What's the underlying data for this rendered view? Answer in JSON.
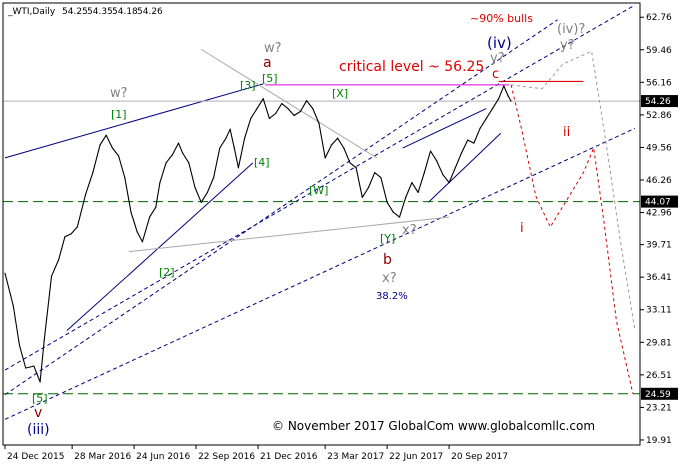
{
  "chart_data": {
    "type": "line",
    "header": {
      "symbol": "_WTI,Daily",
      "ohlc": [
        "54.25",
        "54.35",
        "54.18",
        "54.26"
      ]
    },
    "y_ticks": [
      62.76,
      59.46,
      56.16,
      52.86,
      49.56,
      46.26,
      42.96,
      39.71,
      36.41,
      33.11,
      29.81,
      26.51,
      23.21,
      19.91
    ],
    "y_tick_labels": [
      "62.76",
      "59.46",
      "56.16",
      "52.86",
      "49.56",
      "46.26",
      "42.96",
      "39.71",
      "36.41",
      "33.11",
      "29.81",
      "26.51",
      "23.21",
      "19.91"
    ],
    "ylim": [
      19.4,
      64.2
    ],
    "x_tick_labels": [
      "24 Dec 2015",
      "28 Mar 2016",
      "24 Jun 2016",
      "22 Sep 2016",
      "21 Dec 2016",
      "23 Mar 2017",
      "22 Jun 2017",
      "20 Sep 2017"
    ],
    "x_tick_index": [
      0,
      65,
      125,
      185,
      245,
      310,
      370,
      430
    ],
    "x_total_bars": 610,
    "price_markers": [
      {
        "value": 54.26,
        "label": "54.26",
        "bg": "#000000",
        "fg": "#ffffff"
      },
      {
        "value": 44.07,
        "label": "44.07",
        "bg": "#000000",
        "fg": "#ffffff"
      },
      {
        "value": 24.59,
        "label": "24.59",
        "bg": "#000000",
        "fg": "#ffffff"
      }
    ],
    "horizontal_levels": [
      {
        "value": 44.07,
        "style": "green-dash"
      },
      {
        "value": 24.59,
        "style": "green-dash"
      },
      {
        "value": 54.26,
        "style": "gray-solid"
      }
    ],
    "critical_level": {
      "value": 56.25,
      "label": "critical level ~ 56.25"
    },
    "price_series": {
      "name": "",
      "points": [
        [
          0,
          36.8
        ],
        [
          8,
          33.5
        ],
        [
          14,
          29.5
        ],
        [
          20,
          27.2
        ],
        [
          28,
          27.4
        ],
        [
          34,
          25.8
        ],
        [
          38,
          30.0
        ],
        [
          45,
          36.5
        ],
        [
          52,
          38.2
        ],
        [
          58,
          40.5
        ],
        [
          64,
          40.8
        ],
        [
          70,
          41.5
        ],
        [
          78,
          44.8
        ],
        [
          85,
          47.0
        ],
        [
          92,
          49.8
        ],
        [
          98,
          50.8
        ],
        [
          104,
          49.5
        ],
        [
          110,
          48.7
        ],
        [
          116,
          46.5
        ],
        [
          122,
          43.0
        ],
        [
          128,
          41.0
        ],
        [
          133,
          40.0
        ],
        [
          140,
          42.5
        ],
        [
          146,
          43.5
        ],
        [
          150,
          46.0
        ],
        [
          156,
          48.0
        ],
        [
          162,
          48.8
        ],
        [
          168,
          50.0
        ],
        [
          172,
          49.0
        ],
        [
          178,
          48.0
        ],
        [
          184,
          45.5
        ],
        [
          190,
          44.0
        ],
        [
          196,
          45.0
        ],
        [
          202,
          46.5
        ],
        [
          208,
          49.5
        ],
        [
          214,
          50.5
        ],
        [
          218,
          51.4
        ],
        [
          222,
          49.5
        ],
        [
          226,
          47.5
        ],
        [
          232,
          50.5
        ],
        [
          238,
          52.5
        ],
        [
          244,
          53.5
        ],
        [
          250,
          54.5
        ],
        [
          256,
          52.5
        ],
        [
          262,
          53.0
        ],
        [
          268,
          54.0
        ],
        [
          274,
          53.5
        ],
        [
          280,
          52.8
        ],
        [
          286,
          53.2
        ],
        [
          292,
          54.3
        ],
        [
          298,
          53.5
        ],
        [
          304,
          52.0
        ],
        [
          310,
          48.5
        ],
        [
          316,
          49.8
        ],
        [
          322,
          50.5
        ],
        [
          328,
          49.5
        ],
        [
          334,
          48.0
        ],
        [
          340,
          47.5
        ],
        [
          346,
          44.5
        ],
        [
          352,
          45.5
        ],
        [
          358,
          47.0
        ],
        [
          364,
          46.5
        ],
        [
          370,
          44.0
        ],
        [
          376,
          43.0
        ],
        [
          382,
          42.5
        ],
        [
          388,
          44.5
        ],
        [
          394,
          46.0
        ],
        [
          400,
          45.0
        ],
        [
          406,
          47.0
        ],
        [
          412,
          49.2
        ],
        [
          418,
          48.2
        ],
        [
          424,
          46.8
        ],
        [
          430,
          46.0
        ],
        [
          436,
          47.5
        ],
        [
          442,
          49.0
        ],
        [
          448,
          50.3
        ],
        [
          454,
          50.0
        ],
        [
          460,
          51.5
        ],
        [
          466,
          52.5
        ],
        [
          472,
          53.5
        ],
        [
          478,
          54.5
        ],
        [
          483,
          55.8
        ],
        [
          487,
          54.8
        ],
        [
          490,
          54.26
        ]
      ]
    },
    "projections": [
      {
        "color": "#cc0000",
        "points": [
          [
            490,
            55.9
          ],
          [
            500,
            51.5
          ],
          [
            514,
            44.6
          ],
          [
            528,
            41.5
          ],
          [
            560,
            47.0
          ],
          [
            570,
            49.5
          ],
          [
            580,
            42.0
          ],
          [
            592,
            32.0
          ],
          [
            608,
            24.6
          ]
        ]
      },
      {
        "color": "#999999",
        "points": [
          [
            490,
            55.9
          ],
          [
            520,
            55.5
          ],
          [
            540,
            58.0
          ],
          [
            568,
            59.3
          ],
          [
            582,
            50.0
          ],
          [
            596,
            40.0
          ],
          [
            610,
            31.0
          ]
        ]
      }
    ],
    "annotations": [
      "w?",
      "w?",
      "a",
      "[5]",
      "[3]",
      "[1]",
      "[X]",
      "(iv)",
      "y?",
      "c",
      "(iv)?",
      "y?",
      "~90% bulls",
      "critical level ~ 56.25",
      "[4]",
      "[W]",
      "[2]",
      "[Y]",
      "x?",
      "b",
      "x?",
      "38.2%",
      "ii",
      "i",
      "[5]",
      "v",
      "(iii)"
    ],
    "copyright": "© November 2017 GlobalCom www.globalcomllc.com"
  }
}
